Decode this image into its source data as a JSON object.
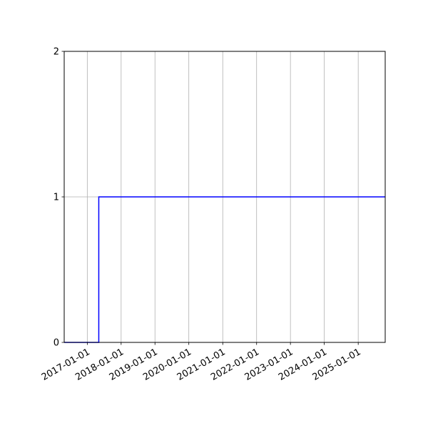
{
  "chart_data": {
    "type": "line",
    "drawstyle": "steps-post",
    "title": "",
    "xlabel": "",
    "ylabel": "",
    "x_is_date": true,
    "xlim": [
      "2016-04-27",
      "2025-10-19"
    ],
    "ylim": [
      0,
      2
    ],
    "x_ticks": [
      "2017-01-01",
      "2018-01-01",
      "2019-01-01",
      "2020-01-01",
      "2021-01-01",
      "2022-01-01",
      "2023-01-01",
      "2024-01-01",
      "2025-01-01"
    ],
    "y_ticks": [
      0,
      1,
      2
    ],
    "y_tick_labels": [
      "0",
      "1",
      "2"
    ],
    "grid": true,
    "series": [
      {
        "color": "#0000ff",
        "x": [
          "2016-04-27",
          "2017-05-05",
          "2025-10-19"
        ],
        "y": [
          0,
          1,
          1
        ]
      }
    ],
    "colors": {
      "grid": "#b0b0b0",
      "axes": "#000000",
      "line": "#0000ff"
    }
  }
}
